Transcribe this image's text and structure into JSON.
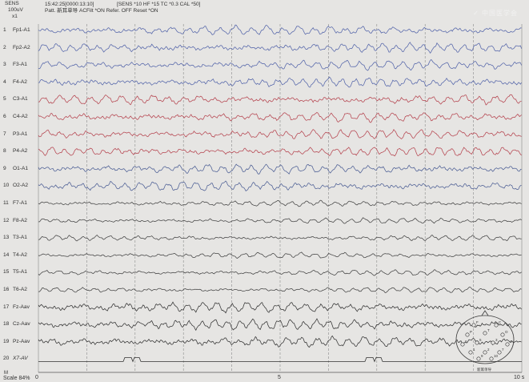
{
  "header": {
    "sens_label": "SENS",
    "sens_value": "100uV",
    "sens_scale": "x1",
    "time_stamp": "15:42:25[0000:13:10]",
    "filter_settings": "[SENS *10  HF *15  TC *0.3  CAL *50]",
    "patt_line": "Patt. 新耳单导  ACFilt *ON  Refer. OFF  Reset *ON",
    "brand_watermark": "✓ 中国医学会"
  },
  "channels": [
    {
      "num": "1",
      "name": "Fp1-A1",
      "color": "#5566aa"
    },
    {
      "num": "2",
      "name": "Fp2-A2",
      "color": "#5566aa"
    },
    {
      "num": "3",
      "name": "F3-A1",
      "color": "#5566aa"
    },
    {
      "num": "4",
      "name": "F4-A2",
      "color": "#5566aa"
    },
    {
      "num": "5",
      "name": "C3-A1",
      "color": "#b64550"
    },
    {
      "num": "6",
      "name": "C4-A2",
      "color": "#b64550"
    },
    {
      "num": "7",
      "name": "P3-A1",
      "color": "#b64550"
    },
    {
      "num": "8",
      "name": "P4-A2",
      "color": "#b64550"
    },
    {
      "num": "9",
      "name": "O1-A1",
      "color": "#4d5f95"
    },
    {
      "num": "10",
      "name": "O2-A2",
      "color": "#4d5f95"
    },
    {
      "num": "11",
      "name": "F7-A1",
      "color": "#444444"
    },
    {
      "num": "12",
      "name": "F8-A2",
      "color": "#444444"
    },
    {
      "num": "13",
      "name": "T3-A1",
      "color": "#444444"
    },
    {
      "num": "14",
      "name": "T4-A2",
      "color": "#444444"
    },
    {
      "num": "15",
      "name": "T5-A1",
      "color": "#444444"
    },
    {
      "num": "16",
      "name": "T6-A2",
      "color": "#444444"
    },
    {
      "num": "17",
      "name": "Fz-Aav",
      "color": "#333333"
    },
    {
      "num": "18",
      "name": "Cz-Aav",
      "color": "#333333"
    },
    {
      "num": "19",
      "name": "Pz-Aav",
      "color": "#333333"
    },
    {
      "num": "20",
      "name": "X7-AV",
      "color": "#333333"
    }
  ],
  "footer": {
    "m_label": "M",
    "scale_text": "Scale  84%",
    "t0": "0",
    "t5": "5",
    "t10": "10 s"
  },
  "head_map": {
    "caption": "新耳单导",
    "electrodes": [
      "F",
      "C",
      "P",
      "T",
      "O",
      "6",
      "5",
      "3",
      "4",
      "1",
      "2",
      "7",
      "9",
      "10"
    ]
  }
}
